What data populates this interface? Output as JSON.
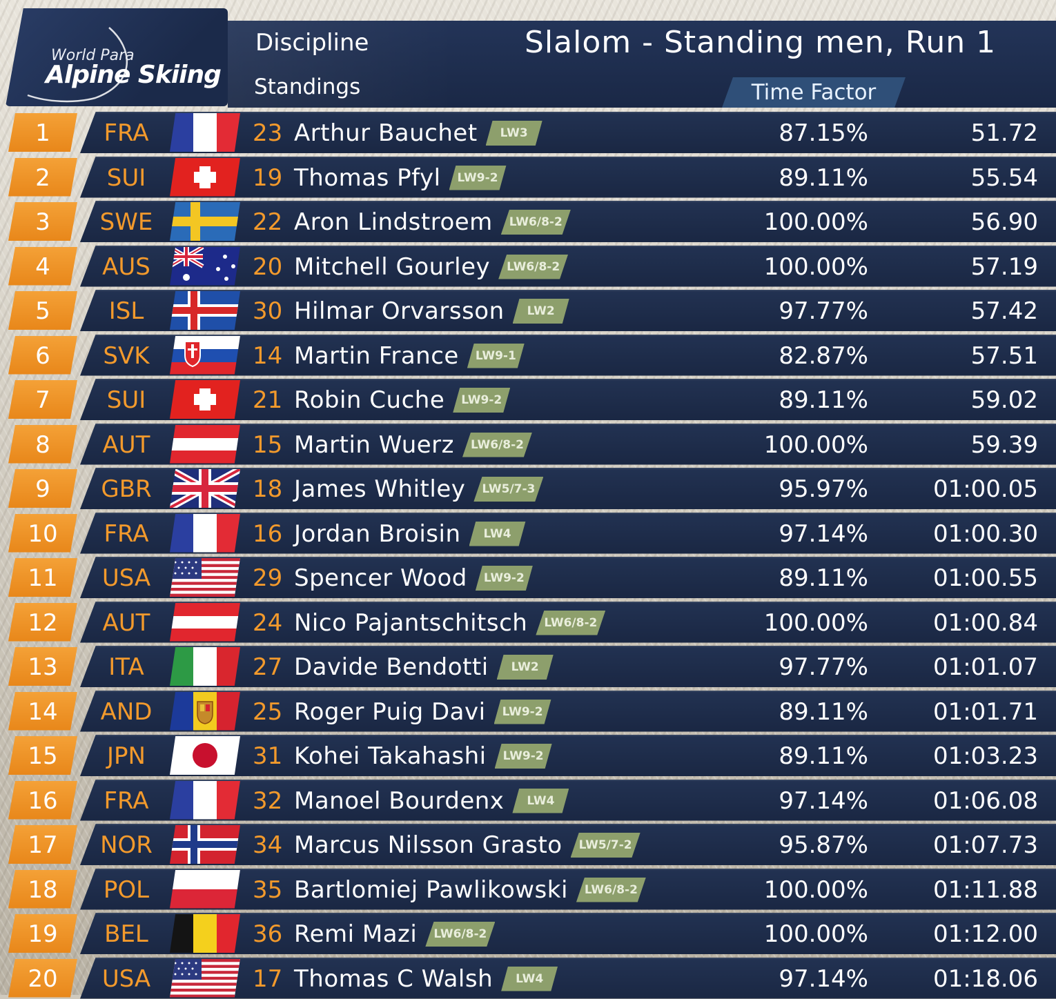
{
  "header": {
    "logo_line1": "World Para",
    "logo_line2": "Alpine Skiing",
    "discipline_label": "Discipline",
    "standings_label": "Standings",
    "title": "Slalom - Standing men, Run 1",
    "column_tab": "Time Factor"
  },
  "colors": {
    "rank_orange": "#e8871a",
    "noc_text": "#f39a2c",
    "row_bar": "#1a2743",
    "class_badge": "#8d9f6c",
    "header_blue": "#233458"
  },
  "results": [
    {
      "rank": "1",
      "noc": "FRA",
      "flag": "fra-flag",
      "bib": "23",
      "name": "Arthur Bauchet",
      "cls": "LW3",
      "factor": "87.15%",
      "time": "51.72"
    },
    {
      "rank": "2",
      "noc": "SUI",
      "flag": "sui-flag",
      "bib": "19",
      "name": "Thomas Pfyl",
      "cls": "LW9-2",
      "factor": "89.11%",
      "time": "55.54"
    },
    {
      "rank": "3",
      "noc": "SWE",
      "flag": "swe-flag",
      "bib": "22",
      "name": "Aron Lindstroem",
      "cls": "LW6/8-2",
      "factor": "100.00%",
      "time": "56.90"
    },
    {
      "rank": "4",
      "noc": "AUS",
      "flag": "aus-flag",
      "bib": "20",
      "name": "Mitchell Gourley",
      "cls": "LW6/8-2",
      "factor": "100.00%",
      "time": "57.19"
    },
    {
      "rank": "5",
      "noc": "ISL",
      "flag": "isl-flag",
      "bib": "30",
      "name": "Hilmar Orvarsson",
      "cls": "LW2",
      "factor": "97.77%",
      "time": "57.42"
    },
    {
      "rank": "6",
      "noc": "SVK",
      "flag": "svk-flag",
      "bib": "14",
      "name": "Martin France",
      "cls": "LW9-1",
      "factor": "82.87%",
      "time": "57.51"
    },
    {
      "rank": "7",
      "noc": "SUI",
      "flag": "sui-flag",
      "bib": "21",
      "name": "Robin Cuche",
      "cls": "LW9-2",
      "factor": "89.11%",
      "time": "59.02"
    },
    {
      "rank": "8",
      "noc": "AUT",
      "flag": "aut-flag",
      "bib": "15",
      "name": "Martin Wuerz",
      "cls": "LW6/8-2",
      "factor": "100.00%",
      "time": "59.39"
    },
    {
      "rank": "9",
      "noc": "GBR",
      "flag": "gbr-flag",
      "bib": "18",
      "name": "James Whitley",
      "cls": "LW5/7-3",
      "factor": "95.97%",
      "time": "01:00.05"
    },
    {
      "rank": "10",
      "noc": "FRA",
      "flag": "fra-flag",
      "bib": "16",
      "name": "Jordan Broisin",
      "cls": "LW4",
      "factor": "97.14%",
      "time": "01:00.30"
    },
    {
      "rank": "11",
      "noc": "USA",
      "flag": "usa-flag",
      "bib": "29",
      "name": "Spencer Wood",
      "cls": "LW9-2",
      "factor": "89.11%",
      "time": "01:00.55"
    },
    {
      "rank": "12",
      "noc": "AUT",
      "flag": "aut-flag",
      "bib": "24",
      "name": "Nico Pajantschitsch",
      "cls": "LW6/8-2",
      "factor": "100.00%",
      "time": "01:00.84"
    },
    {
      "rank": "13",
      "noc": "ITA",
      "flag": "ita-flag",
      "bib": "27",
      "name": "Davide Bendotti",
      "cls": "LW2",
      "factor": "97.77%",
      "time": "01:01.07"
    },
    {
      "rank": "14",
      "noc": "AND",
      "flag": "and-flag",
      "bib": "25",
      "name": "Roger Puig Davi",
      "cls": "LW9-2",
      "factor": "89.11%",
      "time": "01:01.71"
    },
    {
      "rank": "15",
      "noc": "JPN",
      "flag": "jpn-flag",
      "bib": "31",
      "name": "Kohei Takahashi",
      "cls": "LW9-2",
      "factor": "89.11%",
      "time": "01:03.23"
    },
    {
      "rank": "16",
      "noc": "FRA",
      "flag": "fra-flag",
      "bib": "32",
      "name": "Manoel Bourdenx",
      "cls": "LW4",
      "factor": "97.14%",
      "time": "01:06.08"
    },
    {
      "rank": "17",
      "noc": "NOR",
      "flag": "nor-flag",
      "bib": "34",
      "name": "Marcus Nilsson Grasto",
      "cls": "LW5/7-2",
      "factor": "95.87%",
      "time": "01:07.73"
    },
    {
      "rank": "18",
      "noc": "POL",
      "flag": "pol-flag",
      "bib": "35",
      "name": "Bartlomiej Pawlikowski",
      "cls": "LW6/8-2",
      "factor": "100.00%",
      "time": "01:11.88"
    },
    {
      "rank": "19",
      "noc": "BEL",
      "flag": "bel-flag",
      "bib": "36",
      "name": "Remi Mazi",
      "cls": "LW6/8-2",
      "factor": "100.00%",
      "time": "01:12.00"
    },
    {
      "rank": "20",
      "noc": "USA",
      "flag": "usa-flag",
      "bib": "17",
      "name": "Thomas C Walsh",
      "cls": "LW4",
      "factor": "97.14%",
      "time": "01:18.06"
    }
  ]
}
